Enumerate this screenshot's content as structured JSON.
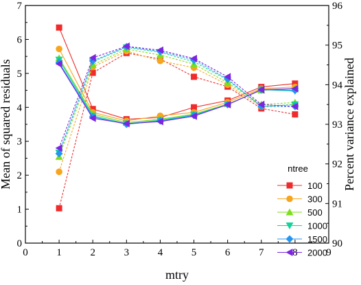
{
  "chart_data": {
    "type": "line",
    "xlabel": "mtry",
    "ylabel_left": "Mean of squared residuals",
    "ylabel_right": "Percent variance explained",
    "xlim": [
      0,
      9
    ],
    "ylim_left": [
      0,
      7
    ],
    "ylim_right": [
      90,
      96
    ],
    "x_ticks": [
      "0",
      "1",
      "2",
      "3",
      "4",
      "5",
      "6",
      "7",
      "8",
      "9"
    ],
    "y_left_ticks": [
      "0",
      "1",
      "2",
      "3",
      "4",
      "5",
      "6",
      "7"
    ],
    "y_right_ticks": [
      "90",
      "91",
      "92",
      "93",
      "94",
      "95",
      "96"
    ],
    "legend_title": "ntree",
    "legend_position": "lower-right",
    "x": [
      1,
      2,
      3,
      4,
      5,
      6,
      7,
      8
    ],
    "series": [
      {
        "name": "100",
        "color": "#ef2b2b",
        "marker": "square",
        "mse": [
          6.35,
          3.95,
          3.65,
          3.7,
          4.0,
          4.2,
          4.6,
          4.7
        ],
        "pve": [
          90.88,
          94.3,
          94.8,
          94.65,
          94.2,
          93.95,
          93.4,
          93.25
        ]
      },
      {
        "name": "300",
        "color": "#f7a51e",
        "marker": "circle",
        "mse": [
          5.72,
          3.85,
          3.6,
          3.75,
          3.85,
          4.15,
          4.55,
          4.6
        ],
        "pve": [
          91.8,
          94.45,
          94.85,
          94.6,
          94.43,
          94.0,
          93.45,
          93.5
        ]
      },
      {
        "name": "500",
        "color": "#7ede1c",
        "marker": "triangle-up",
        "mse": [
          5.45,
          3.8,
          3.55,
          3.65,
          3.8,
          4.1,
          4.5,
          4.55
        ],
        "pve": [
          92.18,
          94.5,
          94.9,
          94.75,
          94.52,
          94.05,
          93.5,
          93.55
        ]
      },
      {
        "name": "1000",
        "color": "#12d39a",
        "marker": "triangle-down",
        "mse": [
          5.4,
          3.75,
          3.52,
          3.62,
          3.78,
          4.08,
          4.52,
          4.48
        ],
        "pve": [
          92.28,
          94.58,
          94.94,
          94.82,
          94.58,
          94.12,
          93.45,
          93.5
        ]
      },
      {
        "name": "1500",
        "color": "#2196f3",
        "marker": "diamond",
        "mse": [
          5.32,
          3.72,
          3.5,
          3.6,
          3.76,
          4.08,
          4.52,
          4.5
        ],
        "pve": [
          92.26,
          94.6,
          94.96,
          94.84,
          94.63,
          94.14,
          93.45,
          93.45
        ]
      },
      {
        "name": "2000",
        "color": "#7d24e0",
        "marker": "triangle-left",
        "mse": [
          5.28,
          3.68,
          3.52,
          3.58,
          3.74,
          4.08,
          4.52,
          4.55
        ],
        "pve": [
          92.4,
          94.68,
          94.97,
          94.87,
          94.66,
          94.2,
          93.5,
          93.45
        ]
      }
    ]
  }
}
